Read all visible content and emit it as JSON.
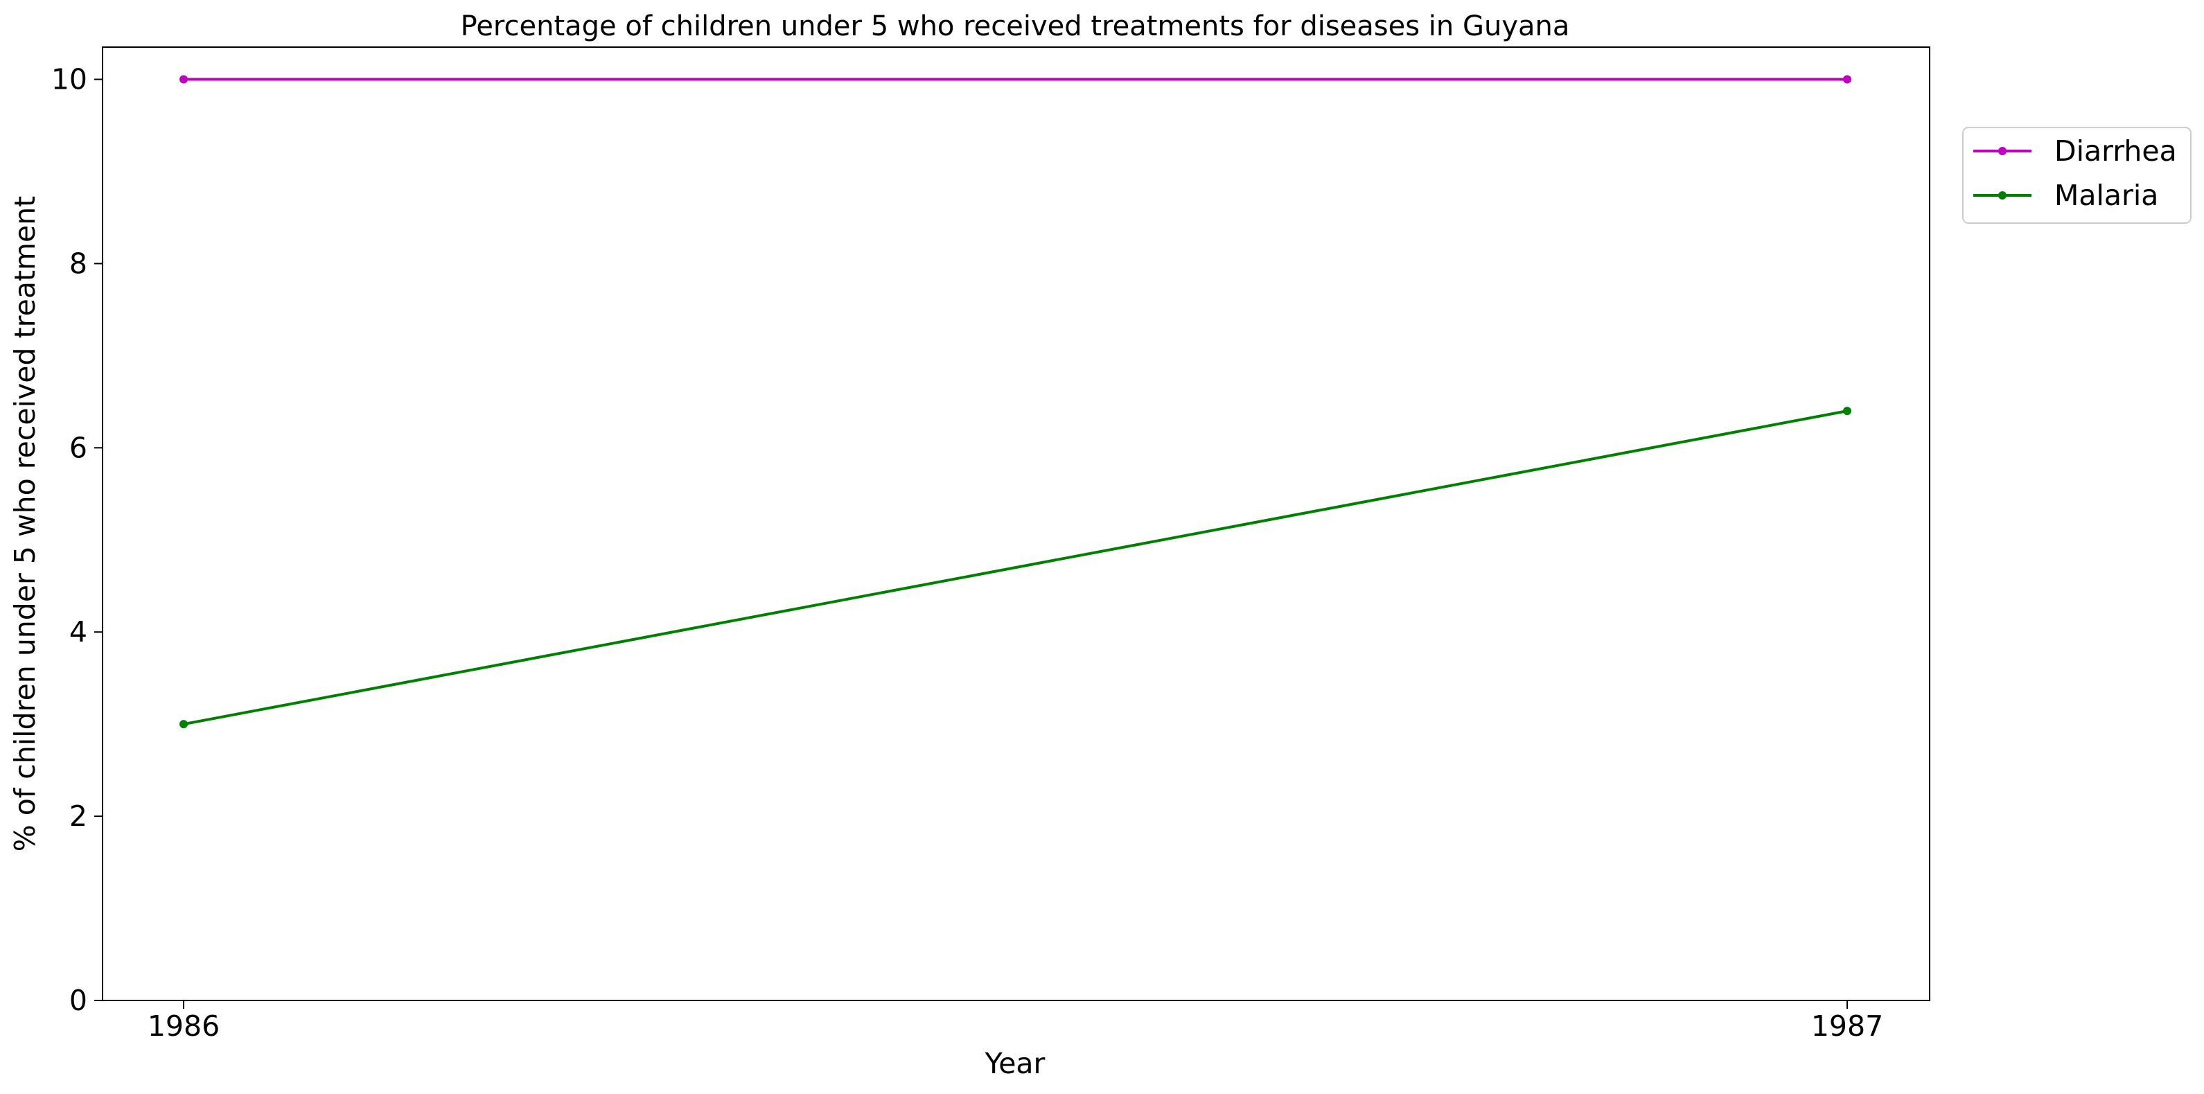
{
  "chart_data": {
    "type": "line",
    "title": "Percentage of children under 5 who received treatments for diseases in Guyana",
    "xlabel": "Year",
    "ylabel": "% of children under 5 who received treatment",
    "x": [
      "1986",
      "1987"
    ],
    "ylim": [
      0,
      10.35
    ],
    "yticks": [
      "0",
      "2",
      "4",
      "6",
      "8",
      "10"
    ],
    "grid": false,
    "legend_position": "outside-top-right",
    "series": [
      {
        "name": "Diarrhea",
        "values": [
          10,
          10
        ],
        "color": "#bf00bf"
      },
      {
        "name": "Malaria",
        "values": [
          3,
          6.4
        ],
        "color": "#008000"
      }
    ]
  }
}
